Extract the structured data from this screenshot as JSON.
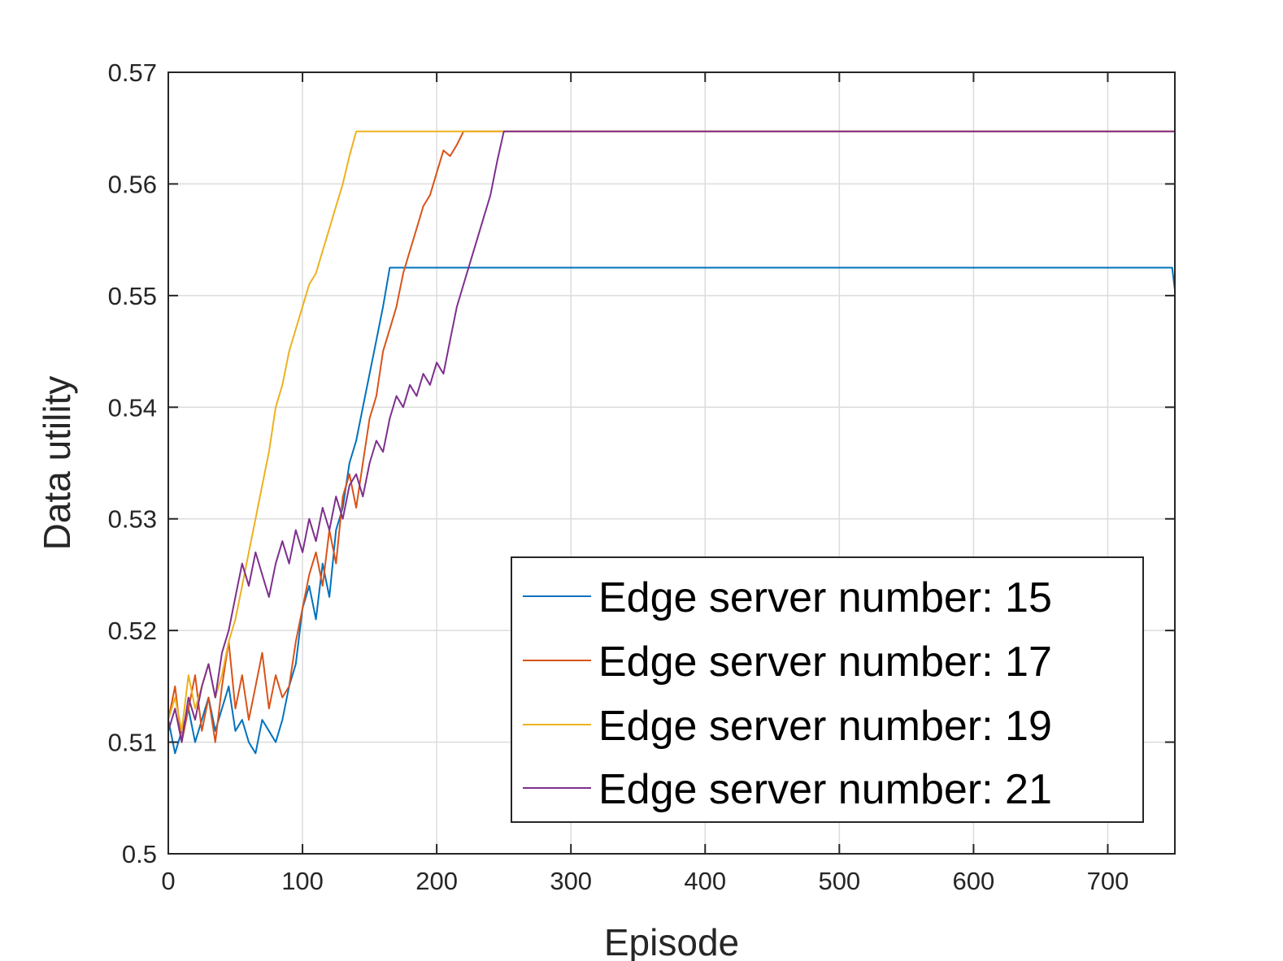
{
  "chart_data": {
    "type": "line",
    "xlabel": "Episode",
    "ylabel": "Data utility",
    "xlim": [
      0,
      750
    ],
    "ylim": [
      0.5,
      0.57
    ],
    "xticks": [
      0,
      100,
      200,
      300,
      400,
      500,
      600,
      700
    ],
    "yticks": [
      0.5,
      0.51,
      0.52,
      0.53,
      0.54,
      0.55,
      0.56,
      0.57
    ],
    "xtick_labels": [
      "0",
      "100",
      "200",
      "300",
      "400",
      "500",
      "600",
      "700"
    ],
    "ytick_labels": [
      "0.5",
      "0.51",
      "0.52",
      "0.53",
      "0.54",
      "0.55",
      "0.56",
      "0.57"
    ],
    "grid": true,
    "legend_position": "bottom-right",
    "series": [
      {
        "name": "Edge server number: 15",
        "color": "#0072BD",
        "x": [
          0,
          5,
          10,
          15,
          20,
          25,
          30,
          35,
          40,
          45,
          50,
          55,
          60,
          65,
          70,
          75,
          80,
          85,
          90,
          95,
          100,
          105,
          110,
          115,
          120,
          125,
          130,
          135,
          140,
          145,
          150,
          155,
          160,
          165,
          170,
          175,
          180,
          185,
          190,
          195,
          200,
          300,
          400,
          500,
          600,
          700,
          748,
          750
        ],
        "y": [
          0.512,
          0.509,
          0.511,
          0.513,
          0.51,
          0.512,
          0.514,
          0.511,
          0.513,
          0.515,
          0.511,
          0.512,
          0.51,
          0.509,
          0.512,
          0.511,
          0.51,
          0.512,
          0.515,
          0.517,
          0.522,
          0.524,
          0.521,
          0.526,
          0.523,
          0.529,
          0.531,
          0.535,
          0.537,
          0.54,
          0.543,
          0.546,
          0.549,
          0.5525,
          0.5525,
          0.5525,
          0.5525,
          0.5525,
          0.5525,
          0.5525,
          0.5525,
          0.5525,
          0.5525,
          0.5525,
          0.5525,
          0.5525,
          0.5525,
          0.5505
        ]
      },
      {
        "name": "Edge server number: 17",
        "color": "#D95319",
        "x": [
          0,
          5,
          10,
          15,
          20,
          25,
          30,
          35,
          40,
          45,
          50,
          55,
          60,
          65,
          70,
          75,
          80,
          85,
          90,
          95,
          100,
          105,
          110,
          115,
          120,
          125,
          130,
          135,
          140,
          145,
          150,
          155,
          160,
          165,
          170,
          175,
          180,
          185,
          190,
          195,
          200,
          205,
          210,
          215,
          220,
          230,
          240,
          250,
          260,
          265,
          270,
          300,
          400,
          500,
          600,
          700,
          750
        ],
        "y": [
          0.512,
          0.515,
          0.51,
          0.513,
          0.516,
          0.511,
          0.514,
          0.51,
          0.515,
          0.519,
          0.513,
          0.516,
          0.512,
          0.515,
          0.518,
          0.513,
          0.516,
          0.514,
          0.515,
          0.519,
          0.522,
          0.525,
          0.527,
          0.524,
          0.529,
          0.526,
          0.532,
          0.534,
          0.531,
          0.535,
          0.539,
          0.541,
          0.545,
          0.547,
          0.549,
          0.552,
          0.554,
          0.556,
          0.558,
          0.559,
          0.561,
          0.563,
          0.5625,
          0.5635,
          0.5647,
          0.5647,
          0.5647,
          0.5647,
          0.5647,
          0.5647,
          0.5647,
          0.5647,
          0.5647,
          0.5647,
          0.5647,
          0.5647,
          0.5647
        ]
      },
      {
        "name": "Edge server number: 19",
        "color": "#EDB120",
        "x": [
          0,
          5,
          10,
          15,
          20,
          25,
          30,
          35,
          40,
          45,
          50,
          55,
          60,
          65,
          70,
          75,
          80,
          85,
          90,
          95,
          100,
          105,
          110,
          115,
          120,
          125,
          130,
          135,
          140,
          150,
          200,
          250,
          300,
          400,
          500,
          600,
          700,
          750
        ],
        "y": [
          0.512,
          0.514,
          0.511,
          0.516,
          0.513,
          0.515,
          0.517,
          0.514,
          0.516,
          0.519,
          0.521,
          0.524,
          0.527,
          0.53,
          0.533,
          0.536,
          0.54,
          0.542,
          0.545,
          0.547,
          0.549,
          0.551,
          0.552,
          0.554,
          0.556,
          0.558,
          0.56,
          0.5625,
          0.5647,
          0.5647,
          0.5647,
          0.5647,
          0.5647,
          0.5647,
          0.5647,
          0.5647,
          0.5647,
          0.5647
        ]
      },
      {
        "name": "Edge server number: 21",
        "color": "#7E2F8E",
        "x": [
          0,
          5,
          10,
          15,
          20,
          25,
          30,
          35,
          40,
          45,
          50,
          55,
          60,
          65,
          70,
          75,
          80,
          85,
          90,
          95,
          100,
          105,
          110,
          115,
          120,
          125,
          130,
          135,
          140,
          145,
          150,
          155,
          160,
          165,
          170,
          175,
          180,
          185,
          190,
          195,
          200,
          205,
          210,
          215,
          220,
          225,
          230,
          235,
          240,
          245,
          250,
          260,
          300,
          400,
          500,
          600,
          700,
          750
        ],
        "y": [
          0.511,
          0.513,
          0.51,
          0.514,
          0.512,
          0.515,
          0.517,
          0.514,
          0.518,
          0.52,
          0.523,
          0.526,
          0.524,
          0.527,
          0.525,
          0.523,
          0.526,
          0.528,
          0.526,
          0.529,
          0.527,
          0.53,
          0.528,
          0.531,
          0.529,
          0.532,
          0.53,
          0.533,
          0.534,
          0.532,
          0.535,
          0.537,
          0.536,
          0.539,
          0.541,
          0.54,
          0.542,
          0.541,
          0.543,
          0.542,
          0.544,
          0.543,
          0.546,
          0.549,
          0.551,
          0.553,
          0.555,
          0.557,
          0.559,
          0.562,
          0.5647,
          0.5647,
          0.5647,
          0.5647,
          0.5647,
          0.5647,
          0.5647,
          0.5647
        ]
      }
    ]
  }
}
